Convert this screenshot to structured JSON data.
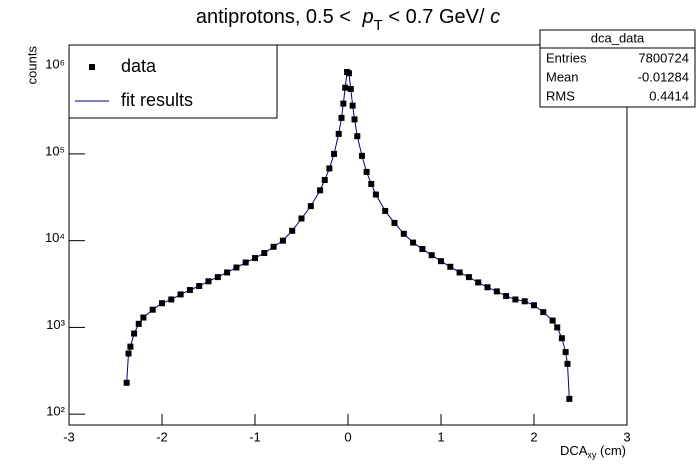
{
  "chart_data": {
    "type": "scatter",
    "title_parts": [
      "antiprotons, 0.5 < ",
      "p",
      "T",
      " < 0.7 GeV/ ",
      "c"
    ],
    "xlabel_parts": [
      "DCA",
      "xy",
      " (cm)"
    ],
    "ylabel": "counts",
    "log_y": true,
    "legend": "top-left",
    "x": [
      -2.38,
      -2.36,
      -2.34,
      -2.3,
      -2.25,
      -2.2,
      -2.1,
      -2.0,
      -1.9,
      -1.8,
      -1.7,
      -1.6,
      -1.5,
      -1.4,
      -1.3,
      -1.2,
      -1.1,
      -1.0,
      -0.9,
      -0.8,
      -0.7,
      -0.6,
      -0.5,
      -0.4,
      -0.3,
      -0.25,
      -0.2,
      -0.15,
      -0.1,
      -0.07,
      -0.05,
      -0.03,
      -0.01,
      0.01,
      0.03,
      0.05,
      0.07,
      0.1,
      0.15,
      0.2,
      0.25,
      0.3,
      0.4,
      0.5,
      0.6,
      0.7,
      0.8,
      0.9,
      1.0,
      1.1,
      1.2,
      1.3,
      1.4,
      1.5,
      1.6,
      1.7,
      1.8,
      1.9,
      2.0,
      2.1,
      2.2,
      2.25,
      2.3,
      2.34,
      2.36,
      2.38
    ],
    "series": [
      {
        "name": "data",
        "color": "#000000",
        "style": "marker",
        "values": [
          230,
          500,
          600,
          850,
          1100,
          1300,
          1600,
          1900,
          2100,
          2400,
          2700,
          3000,
          3400,
          3800,
          4300,
          4900,
          5600,
          6300,
          7200,
          8500,
          10000,
          13000,
          18000,
          25000,
          38000,
          50000,
          68000,
          100000,
          170000,
          260000,
          380000,
          580000,
          880000,
          850000,
          560000,
          360000,
          250000,
          160000,
          95000,
          62000,
          45000,
          34000,
          22000,
          16000,
          12000,
          9500,
          8000,
          6800,
          5800,
          5000,
          4300,
          3800,
          3300,
          2900,
          2600,
          2300,
          2100,
          2000,
          1800,
          1500,
          1200,
          1000,
          750,
          520,
          380,
          150
        ]
      },
      {
        "name": "fit results",
        "color": "#000080",
        "style": "line",
        "values": [
          230,
          500,
          600,
          850,
          1100,
          1300,
          1600,
          1900,
          2100,
          2400,
          2700,
          3000,
          3400,
          3800,
          4300,
          4900,
          5600,
          6300,
          7200,
          8500,
          10000,
          13000,
          18000,
          25000,
          38000,
          50000,
          68000,
          100000,
          170000,
          260000,
          380000,
          580000,
          880000,
          850000,
          560000,
          360000,
          250000,
          160000,
          95000,
          62000,
          45000,
          34000,
          22000,
          16000,
          12000,
          9500,
          8000,
          6800,
          5800,
          5000,
          4300,
          3800,
          3300,
          2900,
          2600,
          2300,
          2100,
          2000,
          1800,
          1500,
          1200,
          1000,
          750,
          520,
          380,
          150
        ]
      }
    ],
    "xlim": [
      -3,
      3
    ],
    "xticks": [
      -3,
      -2,
      -1,
      0,
      1,
      2,
      3
    ],
    "ylim": [
      75,
      1800000
    ],
    "yticks": [
      {
        "value": 100,
        "label": "10²"
      },
      {
        "value": 1000,
        "label": "10³"
      },
      {
        "value": 10000,
        "label": "10⁴"
      },
      {
        "value": 100000,
        "label": "10⁵"
      },
      {
        "value": 1000000,
        "label": "10⁶"
      }
    ],
    "stats": {
      "name": "dca_data",
      "rows": [
        [
          "Entries",
          "7800724"
        ],
        [
          "Mean",
          "-0.01284"
        ],
        [
          "RMS",
          "0.4414"
        ]
      ]
    }
  }
}
